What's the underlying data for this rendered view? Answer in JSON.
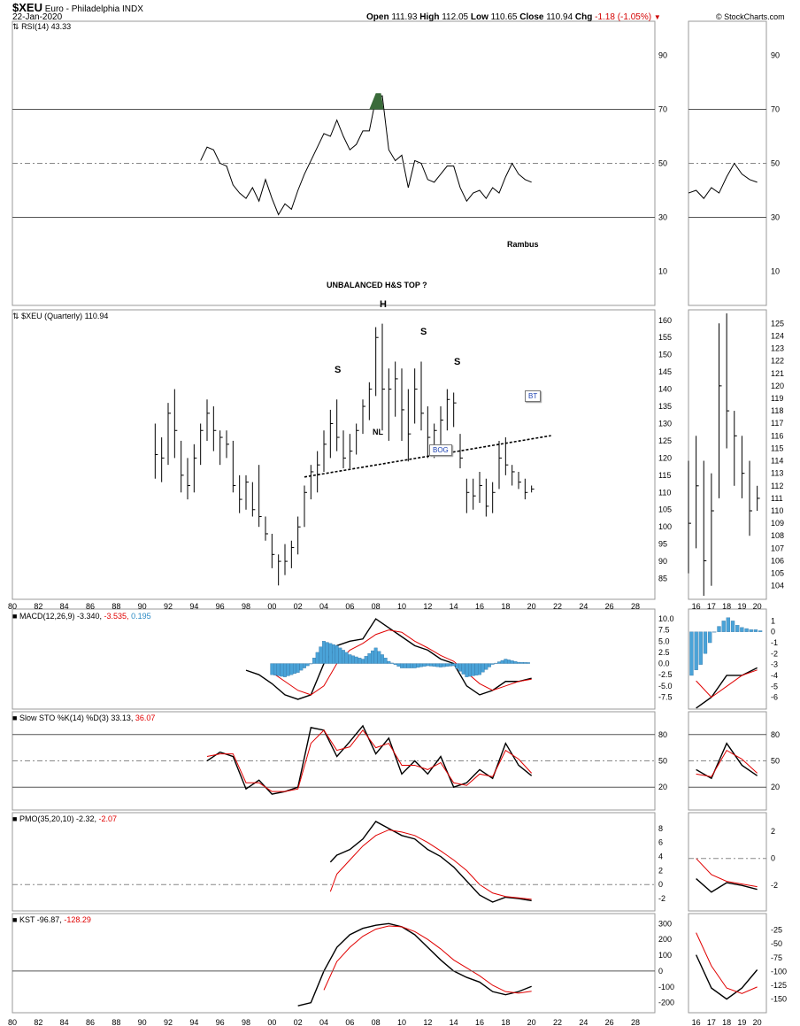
{
  "header": {
    "symbol": "$XEU",
    "name": "Euro - Philadelphia",
    "exchange": "INDX",
    "date": "22-Jan-2020",
    "open_label": "Open",
    "open": "111.93",
    "high_label": "High",
    "high": "112.05",
    "low_label": "Low",
    "low": "110.65",
    "close_label": "Close",
    "close": "110.94",
    "chg_label": "Chg",
    "chg": "-1.18 (-1.05%)",
    "down_icon": "triangle-down-icon",
    "watermark": "© StockCharts.com"
  },
  "annotations": {
    "title": "UNBALANCED H&S TOP ?",
    "author": "Rambus",
    "head": "H",
    "shoulder_left": "S",
    "shoulder_right": "S",
    "shoulder_right2": "S",
    "neckline": "NL",
    "bog": "BOG",
    "bt": "BT"
  },
  "panels": {
    "rsi": {
      "label": "RSI(14) 43.33",
      "ticks": [
        "90",
        "70",
        "50",
        "30",
        "10"
      ]
    },
    "price": {
      "label": "$XEU (Quarterly) 110.94",
      "ticks": [
        "160",
        "155",
        "150",
        "145",
        "140",
        "135",
        "130",
        "125",
        "120",
        "115",
        "110",
        "105",
        "100",
        "95",
        "90",
        "85"
      ],
      "zoom_ticks": [
        "125",
        "124",
        "123",
        "122",
        "121",
        "120",
        "119",
        "118",
        "117",
        "116",
        "115",
        "114",
        "113",
        "112",
        "111",
        "110",
        "109",
        "108",
        "107",
        "106",
        "105",
        "104"
      ]
    },
    "macd": {
      "label": "MACD(12,26,9) -3.340,",
      "signal": "-3.535,",
      "hist": "0.195",
      "ticks": [
        "10.0",
        "7.5",
        "5.0",
        "2.5",
        "0.0",
        "-2.5",
        "-5.0",
        "-7.5"
      ],
      "zoom_ticks": [
        "1",
        "0",
        "-1",
        "-2",
        "-3",
        "-4",
        "-5",
        "-6"
      ]
    },
    "sto": {
      "label": "Slow STO %K(14) %D(3) 33.13,",
      "d": "36.07",
      "ticks": [
        "80",
        "50",
        "20"
      ]
    },
    "pmo": {
      "label": "PMO(35,20,10) -2.32,",
      "signal": "-2.07",
      "ticks": [
        "8",
        "6",
        "4",
        "2",
        "0",
        "-2"
      ],
      "zoom_ticks": [
        "2",
        "0",
        "-2"
      ]
    },
    "kst": {
      "label": "KST -96.87,",
      "signal": "-128.29",
      "ticks": [
        "300",
        "200",
        "100",
        "0",
        "-100",
        "-200"
      ],
      "zoom_ticks": [
        "-25",
        "-50",
        "-75",
        "-100",
        "-125",
        "-150"
      ]
    }
  },
  "x_axis": {
    "main": [
      "80",
      "82",
      "84",
      "86",
      "88",
      "90",
      "92",
      "94",
      "96",
      "98",
      "00",
      "02",
      "04",
      "06",
      "08",
      "10",
      "12",
      "14",
      "16",
      "18",
      "20",
      "22",
      "24",
      "26",
      "28"
    ],
    "zoom": [
      "16",
      "17",
      "18",
      "19",
      "20"
    ]
  },
  "colors": {
    "line": "#000000",
    "signal": "#e00000",
    "hist": "#4aa3d8",
    "rsi_fill": "#3a6b3a",
    "grid": "#888888"
  },
  "chart_data": [
    {
      "type": "line",
      "title": "RSI(14) 43.33",
      "ylim": [
        0,
        100
      ],
      "x": [
        1994.5,
        1995,
        1995.5,
        1996,
        1996.5,
        1997,
        1997.5,
        1998,
        1998.5,
        1999,
        1999.5,
        2000,
        2000.5,
        2001,
        2001.5,
        2002,
        2002.5,
        2003,
        2003.5,
        2004,
        2004.5,
        2005,
        2005.5,
        2006,
        2006.5,
        2007,
        2007.5,
        2008,
        2008.5,
        2009,
        2009.5,
        2010,
        2010.5,
        2011,
        2011.5,
        2012,
        2012.5,
        2013,
        2013.5,
        2014,
        2014.5,
        2015,
        2015.5,
        2016,
        2016.5,
        2017,
        2017.5,
        2018,
        2018.5,
        2019,
        2019.5,
        2020
      ],
      "series": [
        {
          "values": [
            51,
            56,
            55,
            50,
            49,
            42,
            39,
            37,
            41,
            36,
            44,
            37,
            31,
            35,
            33,
            40,
            46,
            51,
            56,
            61,
            60,
            66,
            60,
            55,
            57,
            62,
            62,
            74,
            75,
            55,
            51,
            53,
            41,
            51,
            50,
            44,
            43,
            46,
            49,
            49,
            41,
            36,
            39,
            40,
            37,
            41,
            39,
            45,
            50,
            46,
            44,
            43
          ]
        }
      ]
    },
    {
      "type": "bar",
      "title": "$XEU (Quarterly) 110.94",
      "ylim": [
        80,
        162
      ],
      "series": [
        {
          "name": "$XEU",
          "values": [
            [
              1991.0,
              130,
              114,
              121
            ],
            [
              1991.5,
              126,
              113,
              120
            ],
            [
              1992.0,
              136,
              118,
              133
            ],
            [
              1992.5,
              140,
              120,
              128
            ],
            [
              1993.0,
              125,
              110,
              115
            ],
            [
              1993.5,
              120,
              108,
              112
            ],
            [
              1994.0,
              124,
              110,
              120
            ],
            [
              1994.5,
              130,
              118,
              128
            ],
            [
              1995.0,
              137,
              125,
              133
            ],
            [
              1995.5,
              135,
              122,
              128
            ],
            [
              1996.0,
              128,
              118,
              126
            ],
            [
              1996.5,
              128,
              120,
              124
            ],
            [
              1997.0,
              125,
              110,
              112
            ],
            [
              1997.5,
              115,
              104,
              108
            ],
            [
              1998.0,
              115,
              105,
              113
            ],
            [
              1998.5,
              113,
              103,
              105
            ],
            [
              1999.0,
              118,
              100,
              103
            ],
            [
              1999.5,
              103,
              96,
              98
            ],
            [
              2000.0,
              98,
              88,
              92
            ],
            [
              2000.5,
              92,
              83,
              90
            ],
            [
              2001.0,
              95,
              86,
              90
            ],
            [
              2001.5,
              96,
              88,
              94
            ],
            [
              2002.0,
              103,
              92,
              100
            ],
            [
              2002.5,
              112,
              100,
              110
            ],
            [
              2003.0,
              118,
              108,
              116
            ],
            [
              2003.5,
              122,
              110,
              118
            ],
            [
              2004.0,
              128,
              116,
              124
            ],
            [
              2004.5,
              134,
              120,
              130
            ],
            [
              2005.0,
              137,
              122,
              126
            ],
            [
              2005.5,
              128,
              117,
              120
            ],
            [
              2006.0,
              127,
              117,
              122
            ],
            [
              2006.5,
              130,
              121,
              128
            ],
            [
              2007.0,
              137,
              127,
              135
            ],
            [
              2007.5,
              142,
              131,
              140
            ],
            [
              2008.0,
              158,
              138,
              155
            ],
            [
              2008.5,
              159,
              128,
              140
            ],
            [
              2009.0,
              146,
              125,
              140
            ],
            [
              2009.5,
              148,
              132,
              143
            ],
            [
              2010.0,
              146,
              125,
              134
            ],
            [
              2010.5,
              140,
              119,
              127
            ],
            [
              2011.0,
              146,
              130,
              140
            ],
            [
              2011.5,
              148,
              128,
              133
            ],
            [
              2012.0,
              135,
              120,
              126
            ],
            [
              2012.5,
              130,
              120,
              128
            ],
            [
              2013.0,
              135,
              124,
              131
            ],
            [
              2013.5,
              140,
              128,
              137
            ],
            [
              2014.0,
              139,
              129,
              136
            ],
            [
              2014.5,
              127,
              117,
              120
            ],
            [
              2015.0,
              114,
              104,
              110
            ],
            [
              2015.5,
              114,
              105,
              109
            ],
            [
              2016.0,
              116,
              107,
              112
            ],
            [
              2016.5,
              114,
              103,
              106
            ],
            [
              2017.0,
              113,
              104,
              110
            ],
            [
              2017.5,
              125,
              111,
              120
            ],
            [
              2018.0,
              126,
              115,
              118
            ],
            [
              2018.5,
              118,
              112,
              116
            ],
            [
              2019.0,
              116,
              111,
              113
            ],
            [
              2019.5,
              114,
              108,
              110
            ],
            [
              2020.0,
              112,
              110,
              111
            ]
          ]
        }
      ],
      "neckline": [
        [
          2002.5,
          114.5
        ],
        [
          2021.5,
          126.5
        ]
      ]
    },
    {
      "type": "line",
      "title": "MACD(12,26,9) -3.340, -3.535, 0.195",
      "ylim": [
        -9,
        11
      ],
      "x": [
        1998,
        1999,
        2000,
        2001,
        2002,
        2003,
        2004,
        2005,
        2006,
        2007,
        2008,
        2009,
        2010,
        2011,
        2012,
        2013,
        2014,
        2015,
        2016,
        2017,
        2018,
        2019,
        2020
      ],
      "series": [
        {
          "name": "MACD",
          "values": [
            -1.5,
            -2.5,
            -4.5,
            -7,
            -8,
            -7,
            0,
            4,
            5,
            5.5,
            10,
            8,
            6,
            4,
            3,
            1,
            0,
            -5,
            -7,
            -6,
            -4,
            -4,
            -3.3
          ]
        },
        {
          "name": "Signal",
          "values": [
            null,
            null,
            -2,
            -4,
            -6,
            -7,
            -5,
            0,
            3,
            4.5,
            6.5,
            7.5,
            7,
            5,
            3.5,
            1.8,
            0.5,
            -2,
            -4.5,
            -6,
            -5,
            -4,
            -3.5
          ]
        },
        {
          "name": "Histogram",
          "values": [
            null,
            null,
            -2.5,
            -3,
            -2,
            0,
            5,
            4,
            2,
            1,
            3.5,
            0.5,
            -1,
            -1,
            -0.5,
            -0.8,
            -0.5,
            -3,
            -2.5,
            -0.2,
            1,
            0.3,
            0.2
          ]
        }
      ]
    },
    {
      "type": "line",
      "title": "Slow STO %K(14) %D(3) 33.13, 36.07",
      "ylim": [
        0,
        100
      ],
      "x": [
        1995,
        1996,
        1997,
        1998,
        1999,
        2000,
        2001,
        2002,
        2003,
        2004,
        2005,
        2006,
        2007,
        2008,
        2009,
        2010,
        2011,
        2012,
        2013,
        2014,
        2015,
        2016,
        2017,
        2018,
        2019,
        2020
      ],
      "series": [
        {
          "name": "%K",
          "values": [
            50,
            60,
            55,
            18,
            28,
            12,
            15,
            20,
            88,
            85,
            55,
            72,
            90,
            58,
            76,
            35,
            50,
            35,
            55,
            20,
            25,
            40,
            30,
            70,
            45,
            33
          ]
        },
        {
          "name": "%D",
          "values": [
            55,
            58,
            58,
            25,
            25,
            15,
            15,
            18,
            70,
            85,
            62,
            66,
            85,
            65,
            70,
            45,
            45,
            40,
            48,
            25,
            22,
            35,
            32,
            62,
            52,
            36
          ]
        }
      ]
    },
    {
      "type": "line",
      "title": "PMO(35,20,10) -2.32, -2.07",
      "ylim": [
        -3,
        9.5
      ],
      "x": [
        2004.5,
        2005,
        2006,
        2007,
        2008,
        2009,
        2010,
        2011,
        2012,
        2013,
        2014,
        2015,
        2016,
        2017,
        2018,
        2019,
        2020
      ],
      "series": [
        {
          "name": "PMO",
          "values": [
            3.2,
            4.2,
            5,
            6.5,
            9,
            8,
            7,
            6.5,
            5,
            4,
            2.5,
            0.5,
            -1.5,
            -2.5,
            -1.8,
            -2,
            -2.3
          ]
        },
        {
          "name": "Signal",
          "values": [
            -1,
            1.5,
            3.5,
            5.5,
            7,
            7.8,
            7.5,
            7,
            6,
            4.8,
            3.5,
            2,
            0,
            -1.2,
            -1.7,
            -1.9,
            -2.1
          ]
        }
      ]
    },
    {
      "type": "line",
      "title": "KST -96.87, -128.29",
      "ylim": [
        -230,
        330
      ],
      "x": [
        2002,
        2003,
        2004,
        2005,
        2006,
        2007,
        2008,
        2009,
        2010,
        2011,
        2012,
        2013,
        2014,
        2015,
        2016,
        2017,
        2018,
        2019,
        2020
      ],
      "series": [
        {
          "name": "KST",
          "values": [
            -220,
            -200,
            0,
            150,
            230,
            270,
            290,
            300,
            280,
            230,
            150,
            70,
            0,
            -40,
            -70,
            -130,
            -150,
            -130,
            -97
          ]
        },
        {
          "name": "Signal",
          "values": [
            null,
            null,
            -120,
            60,
            150,
            220,
            265,
            285,
            280,
            250,
            200,
            140,
            70,
            20,
            -30,
            -90,
            -130,
            -140,
            -128
          ]
        }
      ]
    }
  ]
}
